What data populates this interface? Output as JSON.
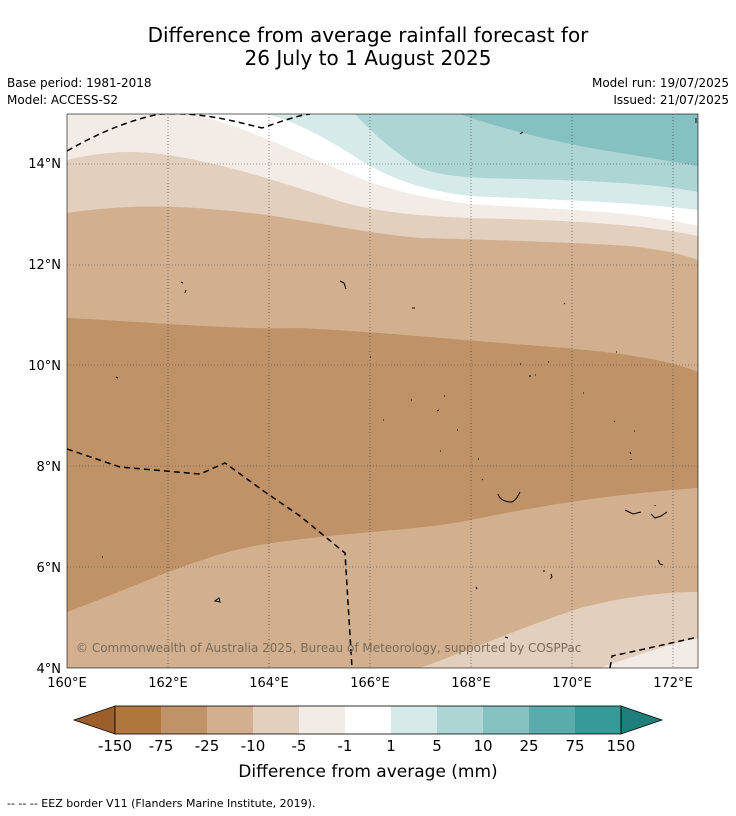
{
  "title": {
    "line1": "Difference from average rainfall forecast for",
    "line2": "26 July to 1 August 2025"
  },
  "meta_left": {
    "base_period": "Base period: 1981-2018",
    "model": "Model: ACCESS-S2"
  },
  "meta_right": {
    "model_run": "Model run: 19/07/2025",
    "issued": "Issued: 21/07/2025"
  },
  "map": {
    "x_ticks": [
      "160°E",
      "162°E",
      "164°E",
      "166°E",
      "168°E",
      "170°E",
      "172°E"
    ],
    "y_ticks": [
      "14°N",
      "12°N",
      "10°N",
      "8°N",
      "6°N",
      "4°N"
    ],
    "copyright": "© Commonwealth of Australia 2025, Bureau of Meteorology, supported by COSPPac",
    "lon_range": [
      160,
      172.5
    ],
    "lat_range": [
      4,
      15
    ]
  },
  "colorbar": {
    "title": "Difference from average (mm)",
    "tick_labels": [
      "-150",
      "-75",
      "-25",
      "-10",
      "-5",
      "-1",
      "1",
      "5",
      "10",
      "25",
      "75",
      "150"
    ],
    "colors": [
      "#9c5f2b",
      "#b0773d",
      "#c09267",
      "#d2b08f",
      "#e3cfbd",
      "#f3ece6",
      "#ffffff",
      "#d6eae9",
      "#acd5d4",
      "#85c1c1",
      "#5aabab",
      "#369a98",
      "#1e7f7c"
    ]
  },
  "footer": {
    "legend": "--  --  -- EEZ border V11 (Flanders Marine Institute, 2019)."
  }
}
